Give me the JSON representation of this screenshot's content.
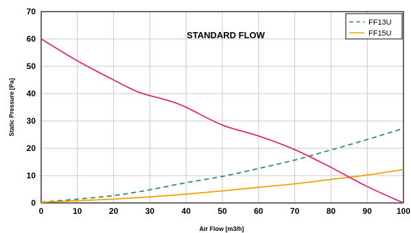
{
  "chart_data": {
    "type": "line",
    "title": "STANDARD FLOW",
    "xlabel": "Air Flow [m3/h]",
    "ylabel": "Static Pressure [Pa]",
    "xlim": [
      0,
      100
    ],
    "ylim": [
      0,
      70
    ],
    "xticks": [
      0,
      10,
      20,
      30,
      40,
      50,
      60,
      70,
      80,
      90,
      100
    ],
    "yticks": [
      0,
      10,
      20,
      30,
      40,
      50,
      60,
      70
    ],
    "grid": true,
    "legend": "top-right",
    "series": [
      {
        "name": "FF13U",
        "color": "#2e8b57",
        "style": "dashed",
        "x": [
          0,
          10,
          20,
          30,
          40,
          50,
          60,
          70,
          80,
          90,
          100
        ],
        "y": [
          0.3,
          1.4,
          2.7,
          4.8,
          7.4,
          9.7,
          12.6,
          15.7,
          19.4,
          23.2,
          27.3
        ]
      },
      {
        "name": "FF15U",
        "color": "#f0a000",
        "style": "solid",
        "x": [
          0,
          10,
          20,
          30,
          40,
          50,
          60,
          70,
          80,
          90,
          100
        ],
        "y": [
          0.2,
          0.8,
          1.4,
          2.2,
          3.2,
          4.4,
          5.7,
          7.0,
          8.6,
          10.2,
          12.2
        ]
      },
      {
        "color": "#e0207a",
        "style": "solid",
        "x": [
          0,
          10,
          20,
          27,
          35,
          40,
          50,
          60,
          70,
          80,
          90,
          100
        ],
        "y": [
          60,
          52,
          45,
          40.5,
          37.5,
          35,
          28.5,
          24.5,
          19.5,
          13,
          6,
          0
        ]
      }
    ]
  }
}
